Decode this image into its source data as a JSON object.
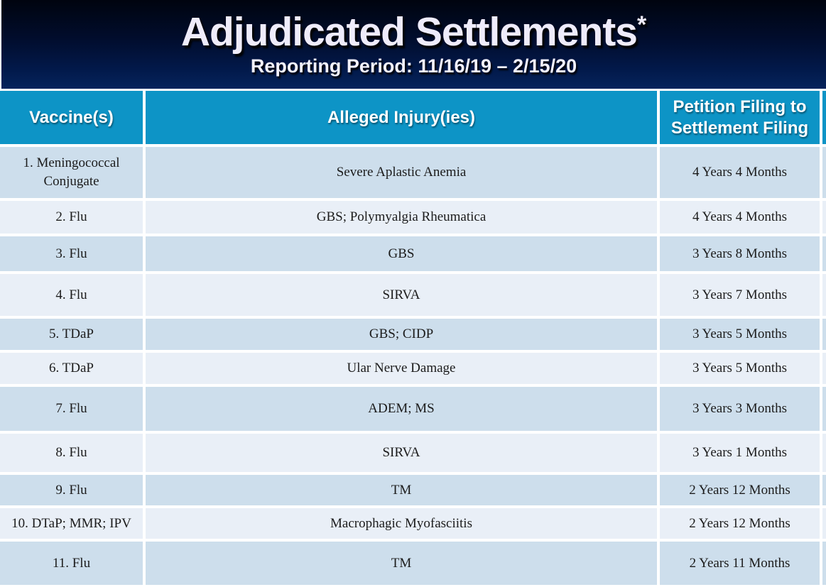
{
  "header": {
    "title": "Adjudicated Settlements",
    "asterisk": "*",
    "subtitle": "Reporting Period: 11/16/19 – 2/15/20"
  },
  "table": {
    "columns": [
      "Vaccine(s)",
      "Alleged Injury(ies)",
      "Petition Filing to Settlement Filing"
    ],
    "rows": [
      {
        "vaccine": "1. Meningococcal Conjugate",
        "injury": "Severe Aplastic Anemia",
        "duration": "4 Years 4 Months"
      },
      {
        "vaccine": "2. Flu",
        "injury": "GBS; Polymyalgia Rheumatica",
        "duration": "4 Years 4 Months"
      },
      {
        "vaccine": "3. Flu",
        "injury": "GBS",
        "duration": "3 Years 8 Months"
      },
      {
        "vaccine": "4. Flu",
        "injury": "SIRVA",
        "duration": "3 Years 7 Months"
      },
      {
        "vaccine": "5. TDaP",
        "injury": "GBS; CIDP",
        "duration": "3 Years 5 Months"
      },
      {
        "vaccine": "6. TDaP",
        "injury": "Ular Nerve Damage",
        "duration": "3 Years 5 Months"
      },
      {
        "vaccine": "7. Flu",
        "injury": "ADEM; MS",
        "duration": "3 Years 3 Months"
      },
      {
        "vaccine": "8. Flu",
        "injury": "SIRVA",
        "duration": "3 Years 1 Months"
      },
      {
        "vaccine": "9. Flu",
        "injury": "TM",
        "duration": "2 Years 12 Months"
      },
      {
        "vaccine": "10. DTaP; MMR; IPV",
        "injury": "Macrophagic Myofasciitis",
        "duration": "2 Years 12 Months"
      },
      {
        "vaccine": "11. Flu",
        "injury": "TM",
        "duration": "2 Years 11 Months"
      }
    ]
  },
  "colors": {
    "accent_cyan": "#0d94c6",
    "row_dark": "#cddeec",
    "row_light": "#e9eff7",
    "banner_navy_top": "#00040f",
    "banner_navy_bottom": "#06245c"
  }
}
